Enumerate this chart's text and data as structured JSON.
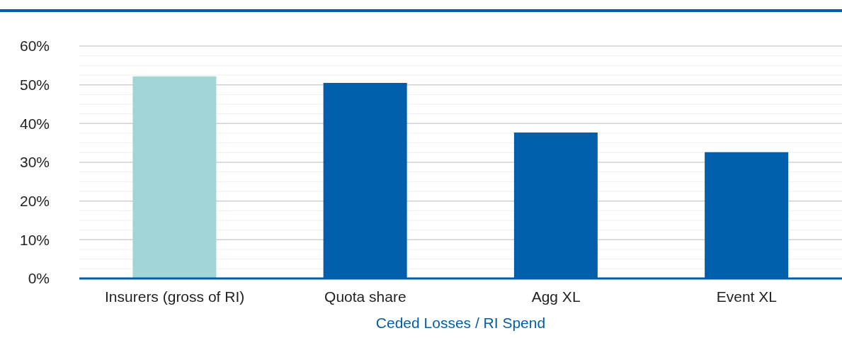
{
  "chart_data": {
    "type": "bar",
    "xlabel": "Ceded Losses / RI Spend",
    "categories": [
      "Insurers (gross of RI)",
      "Quota share",
      "Agg XL",
      "Event XL"
    ],
    "values": [
      52.2,
      50.5,
      37.7,
      32.6
    ],
    "colors": [
      "#a2d5d6",
      "#005eaa",
      "#005eaa",
      "#005eaa"
    ],
    "ylim": [
      0,
      60
    ],
    "yticks": [
      {
        "value": 0,
        "label": "0%"
      },
      {
        "value": 2.5,
        "label": null
      },
      {
        "value": 5,
        "label": null
      },
      {
        "value": 7.5,
        "label": null
      },
      {
        "value": 10,
        "label": "10%"
      },
      {
        "value": 12.5,
        "label": null
      },
      {
        "value": 15,
        "label": null
      },
      {
        "value": 17.5,
        "label": null
      },
      {
        "value": 20,
        "label": "20%"
      },
      {
        "value": 22.5,
        "label": null
      },
      {
        "value": 25,
        "label": null
      },
      {
        "value": 27.5,
        "label": null
      },
      {
        "value": 30,
        "label": "30%"
      },
      {
        "value": 32.5,
        "label": null
      },
      {
        "value": 35,
        "label": null
      },
      {
        "value": 37.5,
        "label": null
      },
      {
        "value": 40,
        "label": "40%"
      },
      {
        "value": 42.5,
        "label": null
      },
      {
        "value": 45,
        "label": null
      },
      {
        "value": 47.5,
        "label": null
      },
      {
        "value": 50,
        "label": "50%"
      },
      {
        "value": 52.5,
        "label": null
      },
      {
        "value": 55,
        "label": null
      },
      {
        "value": 57.5,
        "label": null
      },
      {
        "value": 60,
        "label": "60%"
      }
    ],
    "grid": "y"
  }
}
